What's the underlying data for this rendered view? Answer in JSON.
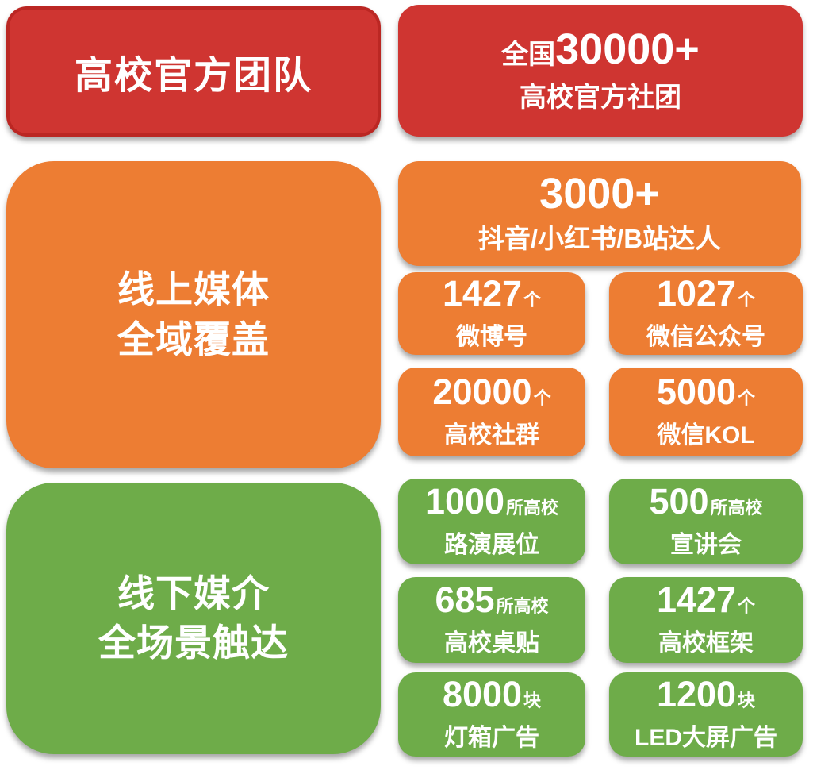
{
  "colors": {
    "red_fill": "#CF3531",
    "red_border": "#BB2723",
    "orange_fill": "#ED7D33",
    "green_fill": "#6EAC49",
    "text": "#FFFFFF",
    "background": "#FFFFFF"
  },
  "sections": {
    "universities": {
      "title": "高校官方团队",
      "stat_prefix": "全国",
      "stat_number": "30000+",
      "stat_label": "高校官方社团"
    },
    "online": {
      "title_line1": "线上媒体",
      "title_line2": "全域覆盖",
      "featured_number": "3000+",
      "featured_label": "抖音/小红书/B站达人",
      "stats": [
        {
          "number": "1427",
          "unit": "个",
          "label": "微博号"
        },
        {
          "number": "1027",
          "unit": "个",
          "label": "微信公众号"
        },
        {
          "number": "20000",
          "unit": "个",
          "label": "高校社群"
        },
        {
          "number": "5000",
          "unit": "个",
          "label": "微信KOL"
        }
      ]
    },
    "offline": {
      "title_line1": "线下媒介",
      "title_line2": "全场景触达",
      "stats": [
        {
          "number": "1000",
          "unit": "所高校",
          "label": "路演展位"
        },
        {
          "number": "500",
          "unit": "所高校",
          "label": "宣讲会"
        },
        {
          "number": "685",
          "unit": "所高校",
          "label": "高校桌贴"
        },
        {
          "number": "1427",
          "unit": "个",
          "label": "高校框架"
        },
        {
          "number": "8000",
          "unit": "块",
          "label": "灯箱广告"
        },
        {
          "number": "1200",
          "unit": "块",
          "label": "LED大屏广告"
        }
      ]
    }
  }
}
